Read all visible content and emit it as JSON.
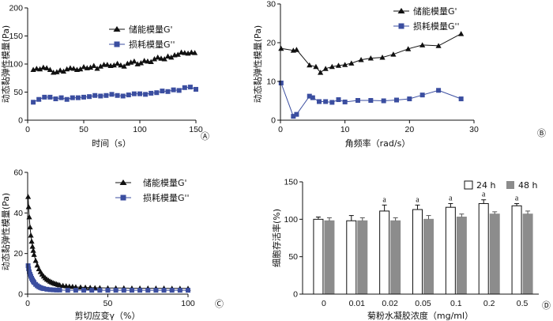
{
  "chart_data": [
    {
      "type": "line",
      "panel": "A",
      "xlabel": "时间（s）",
      "ylabel": "动态黏弹性模量(Pa)",
      "xlim": [
        0,
        150
      ],
      "ylim": [
        0,
        200
      ],
      "xticks": [
        0,
        50,
        100,
        150
      ],
      "yticks": [
        0,
        50,
        100,
        150,
        200
      ],
      "legend": "top-right",
      "series": [
        {
          "name": "储能模量G'",
          "marker": "triangle",
          "color": "#111111",
          "points": [
            [
              5,
              90
            ],
            [
              8,
              92
            ],
            [
              11,
              91
            ],
            [
              14,
              94
            ],
            [
              17,
              93
            ],
            [
              20,
              90
            ],
            [
              23,
              85
            ],
            [
              26,
              86
            ],
            [
              29,
              89
            ],
            [
              32,
              87
            ],
            [
              35,
              91
            ],
            [
              38,
              93
            ],
            [
              41,
              92
            ],
            [
              44,
              90
            ],
            [
              47,
              91
            ],
            [
              50,
              95
            ],
            [
              53,
              93
            ],
            [
              56,
              94
            ],
            [
              59,
              97
            ],
            [
              62,
              92
            ],
            [
              65,
              96
            ],
            [
              68,
              99
            ],
            [
              71,
              99
            ],
            [
              74,
              97
            ],
            [
              77,
              98
            ],
            [
              80,
              101
            ],
            [
              83,
              98
            ],
            [
              86,
              96
            ],
            [
              89,
              101
            ],
            [
              92,
              103
            ],
            [
              95,
              105
            ],
            [
              98,
              100
            ],
            [
              101,
              102
            ],
            [
              104,
              106
            ],
            [
              107,
              105
            ],
            [
              110,
              104
            ],
            [
              113,
              109
            ],
            [
              116,
              112
            ],
            [
              119,
              110
            ],
            [
              122,
              109
            ],
            [
              125,
              114
            ],
            [
              128,
              112
            ],
            [
              131,
              116
            ],
            [
              134,
              117
            ],
            [
              137,
              121
            ],
            [
              140,
              120
            ],
            [
              143,
              119
            ],
            [
              146,
              121
            ],
            [
              149,
              120
            ]
          ]
        },
        {
          "name": "损耗模量G''",
          "marker": "square",
          "color": "#3b4ea0",
          "points": [
            [
              5,
              32
            ],
            [
              10,
              37
            ],
            [
              15,
              41
            ],
            [
              20,
              41
            ],
            [
              25,
              38
            ],
            [
              30,
              40
            ],
            [
              35,
              37
            ],
            [
              40,
              40
            ],
            [
              45,
              40
            ],
            [
              50,
              41
            ],
            [
              55,
              42
            ],
            [
              60,
              44
            ],
            [
              65,
              43
            ],
            [
              70,
              44
            ],
            [
              75,
              46
            ],
            [
              80,
              44
            ],
            [
              85,
              43
            ],
            [
              90,
              45
            ],
            [
              95,
              47
            ],
            [
              100,
              47
            ],
            [
              105,
              46
            ],
            [
              110,
              48
            ],
            [
              115,
              49
            ],
            [
              120,
              52
            ],
            [
              125,
              51
            ],
            [
              130,
              54
            ],
            [
              135,
              53
            ],
            [
              140,
              58
            ],
            [
              145,
              59
            ],
            [
              150,
              55
            ]
          ]
        }
      ],
      "panel_label": "Ⓐ"
    },
    {
      "type": "line",
      "panel": "B",
      "xlabel": "角频率（rad/s）",
      "ylabel": "动态黏弹性模量(Pa)",
      "xlim": [
        0,
        30
      ],
      "ylim": [
        0,
        30
      ],
      "xticks": [
        0,
        10,
        20,
        30
      ],
      "yticks": [
        0,
        10,
        20,
        30
      ],
      "legend": "top-right",
      "series": [
        {
          "name": "储能模量G'",
          "marker": "triangle",
          "color": "#111111",
          "points": [
            [
              0.1,
              18.5
            ],
            [
              2.0,
              18.0
            ],
            [
              2.5,
              18.2
            ],
            [
              4.5,
              14.2
            ],
            [
              5.5,
              13.8
            ],
            [
              6.2,
              12.3
            ],
            [
              7.0,
              13.3
            ],
            [
              8.0,
              13.8
            ],
            [
              9.0,
              14.1
            ],
            [
              10.0,
              14.3
            ],
            [
              11.0,
              14.7
            ],
            [
              12.5,
              15.6
            ],
            [
              14.0,
              16.0
            ],
            [
              15.8,
              16.2
            ],
            [
              17.5,
              17.0
            ],
            [
              19.8,
              18.4
            ],
            [
              22.0,
              19.4
            ],
            [
              24.5,
              19.2
            ],
            [
              28.0,
              22.3
            ]
          ]
        },
        {
          "name": "损耗模量G''",
          "marker": "square",
          "color": "#3b4ea0",
          "points": [
            [
              0.1,
              9.6
            ],
            [
              2.0,
              1.0
            ],
            [
              2.5,
              1.5
            ],
            [
              4.5,
              6.2
            ],
            [
              5.0,
              5.8
            ],
            [
              6.0,
              4.8
            ],
            [
              7.0,
              4.8
            ],
            [
              8.0,
              4.6
            ],
            [
              9.0,
              5.3
            ],
            [
              10.0,
              4.7
            ],
            [
              12.0,
              5.1
            ],
            [
              14.0,
              5.1
            ],
            [
              16.0,
              5.0
            ],
            [
              18.0,
              5.2
            ],
            [
              20.0,
              5.5
            ],
            [
              22.0,
              6.5
            ],
            [
              24.5,
              7.7
            ],
            [
              28.0,
              5.5
            ]
          ]
        }
      ],
      "panel_label": "Ⓑ"
    },
    {
      "type": "line",
      "panel": "C",
      "xlabel": "剪切应变γ（%）",
      "ylabel": "动态黏弹性模量(Pa)",
      "xlim": [
        0,
        100
      ],
      "ylim": [
        0,
        60
      ],
      "xticks": [
        0,
        50,
        100
      ],
      "yticks": [
        0,
        20,
        40,
        60
      ],
      "legend": "top-right",
      "series": [
        {
          "name": "储能模量G'",
          "marker": "triangle",
          "color": "#111111",
          "points": [
            [
              0.3,
              48
            ],
            [
              0.6,
              43
            ],
            [
              1.0,
              38
            ],
            [
              1.5,
              33
            ],
            [
              2.0,
              29
            ],
            [
              2.5,
              26
            ],
            [
              3.0,
              23.5
            ],
            [
              3.5,
              21.5
            ],
            [
              4.0,
              19.5
            ],
            [
              5.0,
              16.5
            ],
            [
              6.0,
              14.2
            ],
            [
              7.0,
              12.4
            ],
            [
              8.0,
              11.0
            ],
            [
              9.0,
              9.8
            ],
            [
              10.0,
              8.8
            ],
            [
              11.0,
              8.0
            ],
            [
              12.0,
              7.3
            ],
            [
              13.0,
              6.8
            ],
            [
              14.0,
              6.3
            ],
            [
              15.0,
              5.9
            ],
            [
              16.0,
              5.5
            ],
            [
              17.0,
              5.2
            ],
            [
              18.0,
              5.0
            ],
            [
              19.0,
              4.7
            ],
            [
              20.0,
              4.5
            ],
            [
              22.0,
              4.2
            ],
            [
              24.0,
              4.0
            ],
            [
              26.0,
              3.8
            ],
            [
              28.0,
              3.7
            ],
            [
              30.0,
              3.5
            ],
            [
              33.0,
              3.4
            ],
            [
              36.0,
              3.3
            ],
            [
              39.0,
              3.2
            ],
            [
              42.0,
              3.1
            ],
            [
              45.0,
              3.1
            ],
            [
              50.0,
              3.0
            ],
            [
              55.0,
              3.0
            ],
            [
              60.0,
              3.0
            ],
            [
              65.0,
              2.9
            ],
            [
              70.0,
              2.9
            ],
            [
              75.0,
              2.9
            ],
            [
              80.0,
              2.9
            ],
            [
              85.0,
              2.9
            ],
            [
              90.0,
              2.8
            ],
            [
              95.0,
              2.8
            ],
            [
              100.0,
              2.8
            ]
          ]
        },
        {
          "name": "损耗模量G''",
          "marker": "square",
          "color": "#3b4ea0",
          "points": [
            [
              0.3,
              14
            ],
            [
              0.6,
              12.5
            ],
            [
              1.0,
              11
            ],
            [
              1.5,
              9.8
            ],
            [
              2.0,
              8.8
            ],
            [
              2.5,
              7.8
            ],
            [
              3.0,
              7.0
            ],
            [
              3.5,
              6.3
            ],
            [
              4.0,
              5.7
            ],
            [
              5.0,
              4.8
            ],
            [
              6.0,
              4.1
            ],
            [
              7.0,
              3.6
            ],
            [
              8.0,
              3.2
            ],
            [
              9.0,
              2.9
            ],
            [
              10.0,
              2.7
            ],
            [
              12.0,
              2.4
            ],
            [
              14.0,
              2.2
            ],
            [
              16.0,
              2.1
            ],
            [
              18.0,
              2.0
            ],
            [
              20.0,
              2.0
            ],
            [
              25.0,
              1.9
            ],
            [
              30.0,
              1.9
            ],
            [
              35.0,
              1.9
            ],
            [
              40.0,
              1.9
            ],
            [
              45.0,
              1.9
            ],
            [
              50.0,
              1.9
            ],
            [
              55.0,
              1.9
            ],
            [
              60.0,
              1.9
            ],
            [
              65.0,
              1.9
            ],
            [
              70.0,
              1.9
            ],
            [
              75.0,
              1.9
            ],
            [
              80.0,
              1.9
            ],
            [
              85.0,
              1.9
            ],
            [
              90.0,
              1.9
            ],
            [
              95.0,
              1.9
            ],
            [
              100.0,
              1.9
            ]
          ]
        }
      ],
      "panel_label": "Ⓒ"
    },
    {
      "type": "bar",
      "panel": "D",
      "xlabel": "菊粉水凝胶浓度（mg/ml）",
      "ylabel": "细胞存活率(%)",
      "ylim": [
        0,
        150
      ],
      "yticks": [
        0,
        50,
        100,
        150
      ],
      "categories": [
        "0",
        "0.01",
        "0.02",
        "0.05",
        "0.1",
        "0.2",
        "0.5"
      ],
      "legend": "top-right",
      "series": [
        {
          "name": "24 h",
          "color": "#ffffff",
          "values": [
            100,
            98,
            111,
            113,
            116,
            121,
            118
          ],
          "errors": [
            3,
            7,
            8,
            6,
            5,
            5,
            3
          ],
          "annotations": [
            "",
            "",
            "a",
            "a",
            "a",
            "a",
            "a"
          ]
        },
        {
          "name": "48 h",
          "color": "#8c8c8c",
          "values": [
            98,
            98,
            98,
            100,
            103,
            107,
            107
          ],
          "errors": [
            4,
            4,
            4,
            5,
            4,
            3,
            4
          ],
          "annotations": [
            "",
            "",
            "",
            "",
            "",
            "",
            ""
          ]
        }
      ],
      "panel_label": "Ⓓ"
    }
  ]
}
